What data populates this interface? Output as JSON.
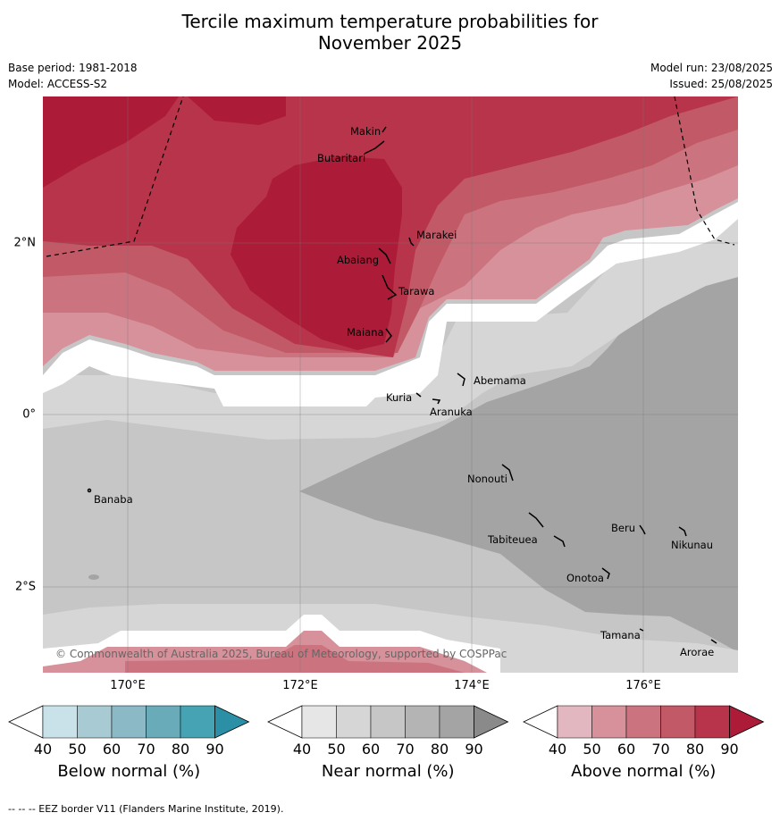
{
  "title_line1": "Tercile maximum temperature probabilities for",
  "title_line2": "November 2025",
  "meta": {
    "base_period": "Base period: 1981-2018",
    "model": "Model: ACCESS-S2",
    "model_run": "Model run: 23/08/2025",
    "issued": "Issued: 25/08/2025"
  },
  "map": {
    "lon_labels": [
      "170°E",
      "172°E",
      "174°E",
      "176°E"
    ],
    "lat_labels": [
      "2°N",
      "0°",
      "2°S"
    ],
    "copyright": "© Commonwealth of Australia 2025, Bureau of Meteorology, supported by COSPPac",
    "places": [
      "Makin",
      "Butaritari",
      "Marakei",
      "Abaiang",
      "Tarawa",
      "Maiana",
      "Abemama",
      "Kuria",
      "Aranuka",
      "Banaba",
      "Nonouti",
      "Beru",
      "Nikunau",
      "Tabiteuea",
      "Onotoa",
      "Tamana",
      "Arorae"
    ]
  },
  "colorbars": [
    {
      "label": "Below normal (%)",
      "ticks": [
        "40",
        "50",
        "60",
        "70",
        "80",
        "90"
      ],
      "colors": [
        "#ffffff",
        "#c9e2ea",
        "#a8cbd3",
        "#8cb9c6",
        "#6aabba",
        "#45a3b3",
        "#2b8fa6"
      ]
    },
    {
      "label": "Near normal (%)",
      "ticks": [
        "40",
        "50",
        "60",
        "70",
        "80",
        "90"
      ],
      "colors": [
        "#ffffff",
        "#e6e6e6",
        "#d6d6d6",
        "#c6c6c6",
        "#b4b4b4",
        "#a4a4a4",
        "#8a8a8a"
      ]
    },
    {
      "label": "Above normal (%)",
      "ticks": [
        "40",
        "50",
        "60",
        "70",
        "80",
        "90"
      ],
      "colors": [
        "#ffffff",
        "#e2b7bf",
        "#d6919a",
        "#cb747f",
        "#c25966",
        "#b8344a",
        "#ac1c38"
      ]
    }
  ],
  "footer": "--  --  -- EEZ border V11 (Flanders Marine Institute, 2019)."
}
